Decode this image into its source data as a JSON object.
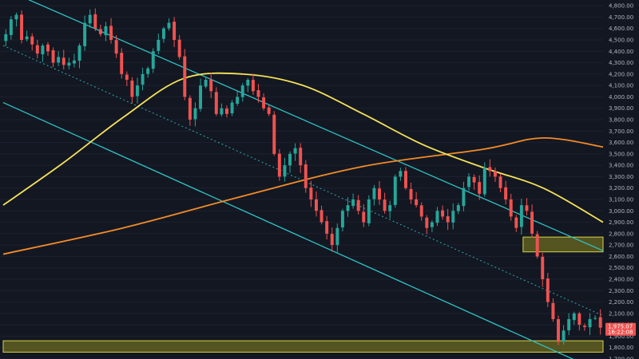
{
  "chart_data": {
    "type": "candlestick",
    "title": "",
    "xlabel": "",
    "ylabel": "",
    "ylim": [
      1700,
      4850
    ],
    "y_ticks": [
      1700,
      1800,
      1900,
      2000,
      2100,
      2200,
      2300,
      2400,
      2500,
      2600,
      2700,
      2800,
      2900,
      3000,
      3100,
      3200,
      3300,
      3400,
      3500,
      3600,
      3700,
      3800,
      3900,
      4000,
      4100,
      4200,
      4300,
      4400,
      4500,
      4600,
      4700,
      4800
    ],
    "y_tick_labels": [
      "1,700.00",
      "1,800.00",
      "1,900.00",
      "2,000.00",
      "2,100.00",
      "2,200.00",
      "2,300.00",
      "2,400.00",
      "2,500.00",
      "2,600.00",
      "2,700.00",
      "2,800.00",
      "2,900.00",
      "3,000.00",
      "3,100.00",
      "3,200.00",
      "3,300.00",
      "3,400.00",
      "3,500.00",
      "3,600.00",
      "3,700.00",
      "3,800.00",
      "3,900.00",
      "4,000.00",
      "4,100.00",
      "4,200.00",
      "4,300.00",
      "4,400.00",
      "4,500.00",
      "4,600.00",
      "4,700.00",
      "4,800.00"
    ],
    "current_price": {
      "label": "1,975.07",
      "countdown": "16:22:08",
      "value": 1975,
      "color": "#ef5350"
    },
    "colors": {
      "up": "#26a69a",
      "down": "#ef5350",
      "ma_fast": "#f5e35a",
      "ma_slow": "#f28c28",
      "channel": "#2fc4c4",
      "zone_fill": "#6b6a21",
      "zone_border": "#d6d24a",
      "grid": "#1e2230",
      "axis_text": "#b2b5be"
    },
    "closes": [
      4550,
      4680,
      4720,
      4500,
      4530,
      4460,
      4380,
      4450,
      4400,
      4300,
      4350,
      4280,
      4300,
      4320,
      4450,
      4650,
      4720,
      4600,
      4550,
      4620,
      4500,
      4380,
      4200,
      4150,
      4000,
      4100,
      4200,
      4250,
      4400,
      4500,
      4600,
      4650,
      4500,
      4350,
      4000,
      3800,
      3900,
      4100,
      4150,
      4050,
      3850,
      3900,
      3850,
      3950,
      4000,
      4100,
      4150,
      4050,
      4000,
      3900,
      3850,
      3500,
      3300,
      3400,
      3500,
      3550,
      3400,
      3200,
      3100,
      3000,
      2900,
      2800,
      2700,
      2850,
      3000,
      3050,
      3100,
      3000,
      2900,
      3100,
      3200,
      3100,
      3000,
      3050,
      3300,
      3350,
      3200,
      3100,
      3050,
      2950,
      2850,
      2900,
      3000,
      2950,
      2900,
      3000,
      3050,
      3200,
      3300,
      3250,
      3150,
      3380,
      3350,
      3300,
      3200,
      3100,
      2950,
      2850,
      3050,
      3000,
      2800,
      2600,
      2400,
      2200,
      2050,
      1850,
      1950,
      2050,
      2100,
      2000,
      1980,
      2050,
      2060,
      1975
    ],
    "ma_fast": [
      [
        0,
        3050
      ],
      [
        15,
        3420
      ],
      [
        30,
        3820
      ],
      [
        45,
        4160
      ],
      [
        60,
        4200
      ],
      [
        75,
        4100
      ],
      [
        90,
        3850
      ],
      [
        105,
        3580
      ],
      [
        120,
        3380
      ],
      [
        135,
        3200
      ],
      [
        150,
        2900
      ]
    ],
    "ma_slow": [
      [
        0,
        2620
      ],
      [
        30,
        2850
      ],
      [
        60,
        3130
      ],
      [
        90,
        3390
      ],
      [
        120,
        3540
      ],
      [
        135,
        3640
      ],
      [
        150,
        3560
      ]
    ],
    "channel_upper": [
      [
        0,
        4950
      ],
      [
        150,
        2650
      ]
    ],
    "channel_lower": [
      [
        0,
        3950
      ],
      [
        150,
        1580
      ]
    ],
    "channel_mid": [
      [
        0,
        4450
      ],
      [
        150,
        2080
      ]
    ],
    "zones": [
      {
        "x": [
          130,
          150
        ],
        "y": [
          2640,
          2770
        ]
      },
      {
        "x": [
          0,
          150
        ],
        "y": [
          1760,
          1860
        ]
      }
    ]
  }
}
